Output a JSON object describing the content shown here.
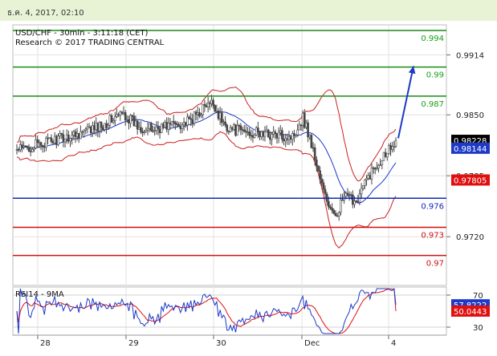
{
  "header": {
    "timestamp": "ธ.ค. 4, 2017, 02:10"
  },
  "chart_data": [
    {
      "type": "candlestick",
      "title": "USD/CHF - 30min - 3:11:18 (CET)",
      "subtitle": "Research © 2017 TRADING CENTRAL",
      "ylim": [
        0.9668,
        0.9946
      ],
      "y_ticks": [
        "0.9914",
        "0.9850",
        "0.9785",
        "0.9720"
      ],
      "x_ticks": [
        "28",
        "29",
        "30",
        "Dec",
        "4"
      ],
      "price_tags": [
        {
          "label": "0.98228",
          "value": 0.98228,
          "color": "#000000"
        },
        {
          "label": "0.98144",
          "value": 0.98144,
          "color": "#1d39c8"
        },
        {
          "label": "0.97805",
          "value": 0.97805,
          "color": "#e01010"
        }
      ],
      "levels": [
        {
          "label": "0.994",
          "value": 0.994,
          "color": "#1a8a1a",
          "text_color": "#16a016"
        },
        {
          "label": "0.99",
          "value": 0.9901,
          "color": "#1a8a1a",
          "text_color": "#16a016"
        },
        {
          "label": "0.987",
          "value": 0.987,
          "color": "#1a8a1a",
          "text_color": "#16a016"
        },
        {
          "label": "0.976",
          "value": 0.9761,
          "color": "#1028b8",
          "text_color": "#1028b8"
        },
        {
          "label": "0.973",
          "value": 0.973,
          "color": "#d01010",
          "text_color": "#d01010"
        },
        {
          "label": "0.97",
          "value": 0.97,
          "color": "#d01010",
          "text_color": "#d01010"
        }
      ],
      "forecast_arrow": {
        "from": 0.9825,
        "to": 0.9902,
        "color": "#1d39c8"
      },
      "series_colors": {
        "candles": "#444444",
        "ma": "#1d39c8",
        "bollinger": "#cc1f1f",
        "grid": "#e2e2e2"
      }
    },
    {
      "type": "line",
      "title": "RSI14 - 9MA",
      "ylim": [
        20,
        80
      ],
      "y_ticks": [
        "70",
        "30"
      ],
      "levels": [
        70,
        30
      ],
      "value_tags": [
        {
          "label": "57.8222",
          "value": 57.8222,
          "color": "#1d39c8"
        },
        {
          "label": "50.0443",
          "value": 50.0443,
          "color": "#e01010"
        }
      ],
      "series": [
        {
          "name": "RSI14",
          "color": "#1d39c8"
        },
        {
          "name": "9MA",
          "color": "#e01010"
        }
      ]
    }
  ]
}
